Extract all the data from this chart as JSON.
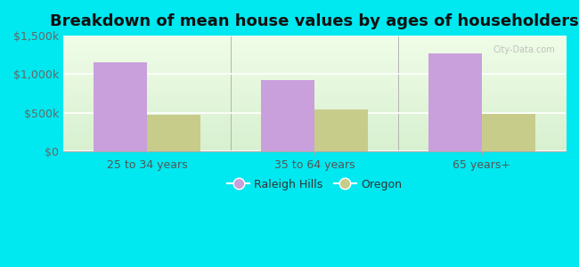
{
  "title": "Breakdown of mean house values by ages of householders",
  "categories": [
    "25 to 34 years",
    "35 to 64 years",
    "65 years+"
  ],
  "raleigh_hills": [
    1150000,
    920000,
    1270000
  ],
  "oregon": [
    470000,
    540000,
    490000
  ],
  "ylim": [
    0,
    1500000
  ],
  "yticks": [
    0,
    500000,
    1000000,
    1500000
  ],
  "ytick_labels": [
    "$0",
    "$500k",
    "$1,000k",
    "$1,500k"
  ],
  "raleigh_color": "#c9a0dc",
  "oregon_color": "#c8cc8a",
  "background_outer": "#00e8f0",
  "legend_raleigh": "Raleigh Hills",
  "legend_oregon": "Oregon",
  "title_fontsize": 13,
  "tick_fontsize": 9,
  "legend_fontsize": 9,
  "bar_width": 0.32,
  "watermark": "City-Data.com"
}
